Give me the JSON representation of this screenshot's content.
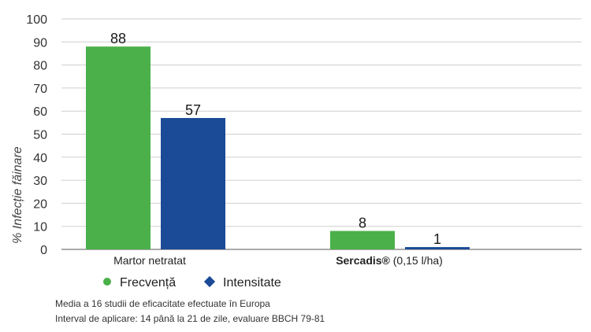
{
  "chart_data": {
    "type": "bar",
    "categories": [
      "Martor netratat",
      "Sercadis®"
    ],
    "category_suffix": [
      "",
      " (0,15 l/ha)"
    ],
    "series": [
      {
        "name": "Frecvență",
        "values": [
          88,
          8
        ],
        "color": "#4bb04a",
        "marker": "circle"
      },
      {
        "name": "Intensitate",
        "values": [
          57,
          1
        ],
        "color": "#1b4b96",
        "marker": "diamond"
      }
    ],
    "ylabel": "% Infecție făinare",
    "xlabel": "",
    "ylim": [
      0,
      100
    ],
    "yticks": [
      0,
      10,
      20,
      30,
      40,
      50,
      60,
      70,
      80,
      90,
      100
    ],
    "grid": true,
    "legend_position": "bottom-left"
  },
  "notes": [
    "Media a 16 studii de eficacitate efectuate în Europa",
    "Interval de aplicare: 14 până la 21 de zile, evaluare BBCH 79-81"
  ]
}
